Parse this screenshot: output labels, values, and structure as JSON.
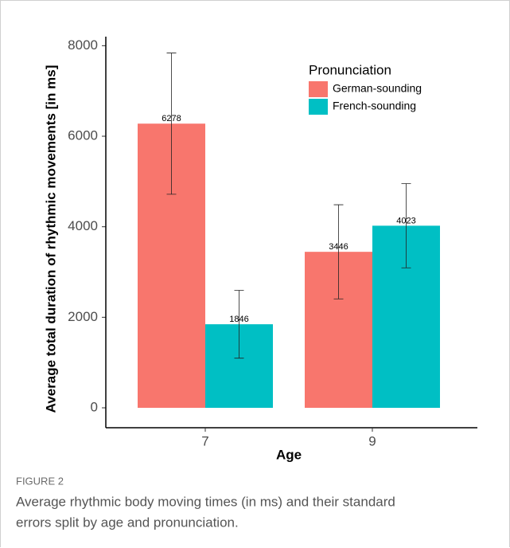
{
  "chart_data": {
    "type": "bar",
    "y_label": "Average total duration of rhythmic movements [in ms]",
    "x_label": "Age",
    "categories": [
      "7",
      "9"
    ],
    "series": [
      {
        "name": "German-sounding",
        "color": "#f8766d",
        "values": [
          6278,
          3446
        ],
        "errors": [
          1560,
          1040
        ]
      },
      {
        "name": "French-sounding",
        "color": "#00bfc4",
        "values": [
          1846,
          4023
        ],
        "errors": [
          750,
          930
        ]
      }
    ],
    "ylim": [
      -440,
      8200
    ],
    "yticks": [
      0,
      2000,
      4000,
      6000,
      8000
    ],
    "legend_title": "Pronunciation",
    "legend_position": "top-right"
  },
  "figure": {
    "label": "FIGURE 2",
    "caption_lines": [
      "Average rhythmic body moving times (in ms) and their standard",
      "errors split by age and pronunciation."
    ]
  }
}
